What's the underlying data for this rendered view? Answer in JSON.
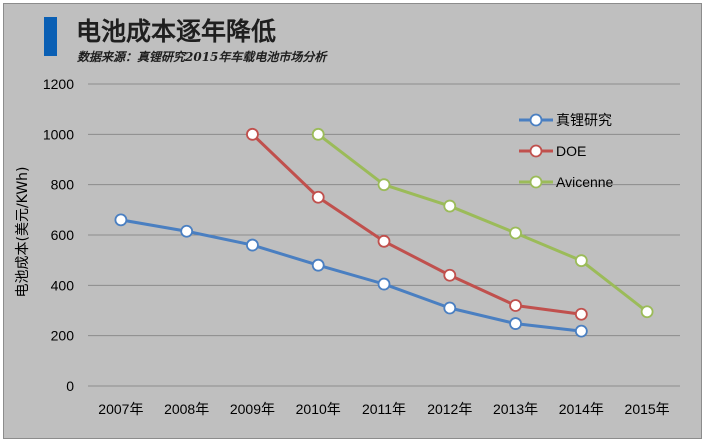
{
  "header": {
    "title": "电池成本逐年降低",
    "subtitle": "数据来源：真锂研究2015年车载电池市场分析"
  },
  "colors": {
    "accent": "#0a5fb4",
    "background": "#bfbfbf",
    "gridline": "#8c8c8c"
  },
  "chart_data": {
    "type": "line",
    "title": "电池成本逐年降低",
    "subtitle": "数据来源：真锂研究2015年车载电池市场分析",
    "xlabel": "",
    "ylabel": "电池成本(美元/KWh)",
    "ylim": [
      0,
      1200
    ],
    "yticks": [
      0,
      200,
      400,
      600,
      800,
      1000,
      1200
    ],
    "grid": "horizontal",
    "legend_position": "top-right",
    "categories": [
      "2007年",
      "2008年",
      "2009年",
      "2010年",
      "2011年",
      "2012年",
      "2013年",
      "2014年",
      "2015年"
    ],
    "series": [
      {
        "name": "真锂研究",
        "color": "#4a7fc1",
        "marker": "open-circle",
        "values": [
          660,
          615,
          560,
          480,
          405,
          310,
          248,
          218,
          null
        ]
      },
      {
        "name": "DOE",
        "color": "#c0504d",
        "marker": "open-circle",
        "values": [
          null,
          null,
          1000,
          750,
          575,
          440,
          320,
          285,
          null
        ]
      },
      {
        "name": "Avicenne",
        "color": "#9bbb59",
        "marker": "open-circle",
        "values": [
          null,
          null,
          null,
          1000,
          800,
          715,
          608,
          498,
          295
        ]
      }
    ]
  }
}
